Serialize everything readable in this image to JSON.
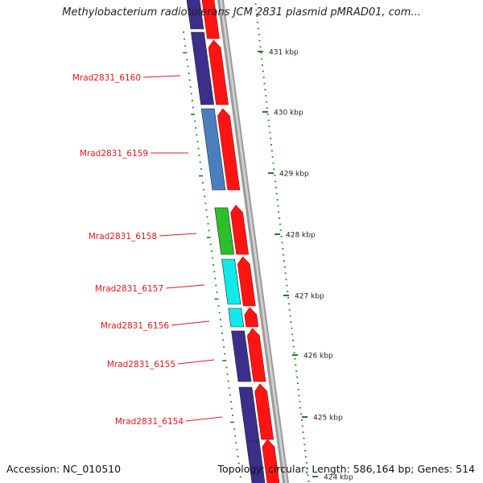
{
  "title": "Methylobacterium radiotolerans JCM 2831 plasmid pMRAD01, com...",
  "footer": {
    "accession": "Accession: NC_010510",
    "topology": "Topology: circular; Length: 586,164 bp; Genes: 514"
  },
  "colors": {
    "label_red": "#e8141e",
    "cds_red": "#ff1414",
    "tick_green": "#1e7d1e",
    "backbone_gray": "#8c8c8c"
  },
  "kbp_markers": [
    "431 kbp",
    "430 kbp",
    "429 kbp",
    "428 kbp",
    "427 kbp",
    "426 kbp",
    "425 kbp",
    "424 kbp"
  ],
  "genes": [
    {
      "name": "Mrad2831_6160",
      "color": "#3c2f8c"
    },
    {
      "name": "Mrad2831_6159",
      "color": "#4a7fbf"
    },
    {
      "name": "Mrad2831_6158",
      "color": "#2dbe2d"
    },
    {
      "name": "Mrad2831_6157",
      "color": "#10eaea"
    },
    {
      "name": "Mrad2831_6156",
      "color": "#10eaea"
    },
    {
      "name": "Mrad2831_6155",
      "color": "#3c2f8c"
    },
    {
      "name": "Mrad2831_6154",
      "color": "#3c2f8c"
    }
  ]
}
